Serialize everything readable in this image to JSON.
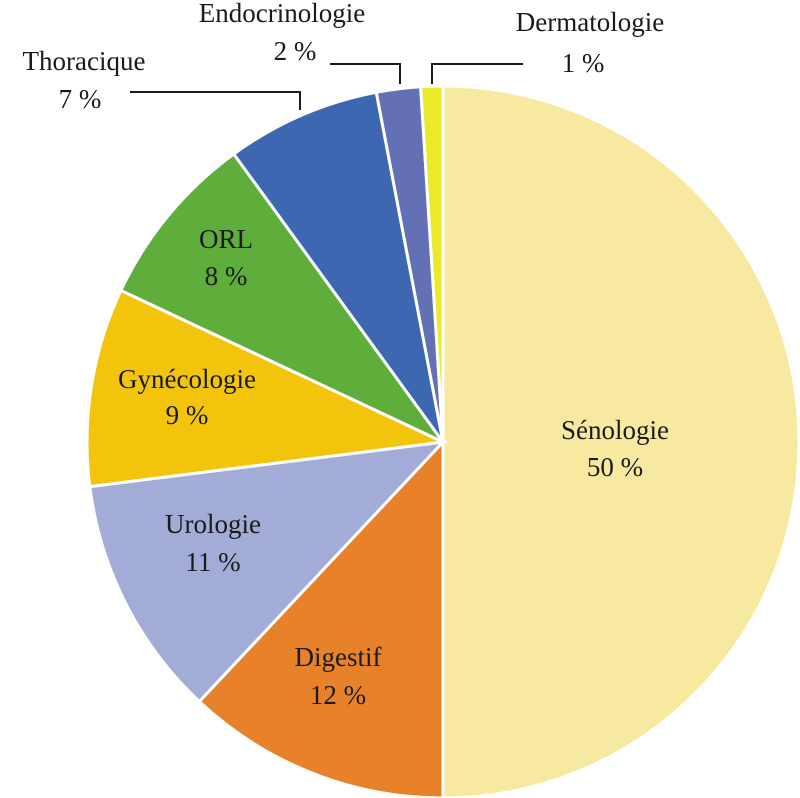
{
  "chart_data": {
    "type": "pie",
    "categories": [
      "Sénologie",
      "Digestif",
      "Urologie",
      "Gynécologie",
      "ORL",
      "Thoracique",
      "Endocrinologie",
      "Dermatologie"
    ],
    "values": [
      50,
      12,
      11,
      9,
      8,
      7,
      2,
      1
    ],
    "value_labels": [
      "50 %",
      "12 %",
      "11 %",
      "9 %",
      "8 %",
      "7 %",
      "2 %",
      "1 %"
    ],
    "colors": [
      "#f7e9a0",
      "#e8822a",
      "#a3acd6",
      "#f2c40c",
      "#5fad3a",
      "#3d67b0",
      "#6470b5",
      "#eaea2a"
    ]
  }
}
